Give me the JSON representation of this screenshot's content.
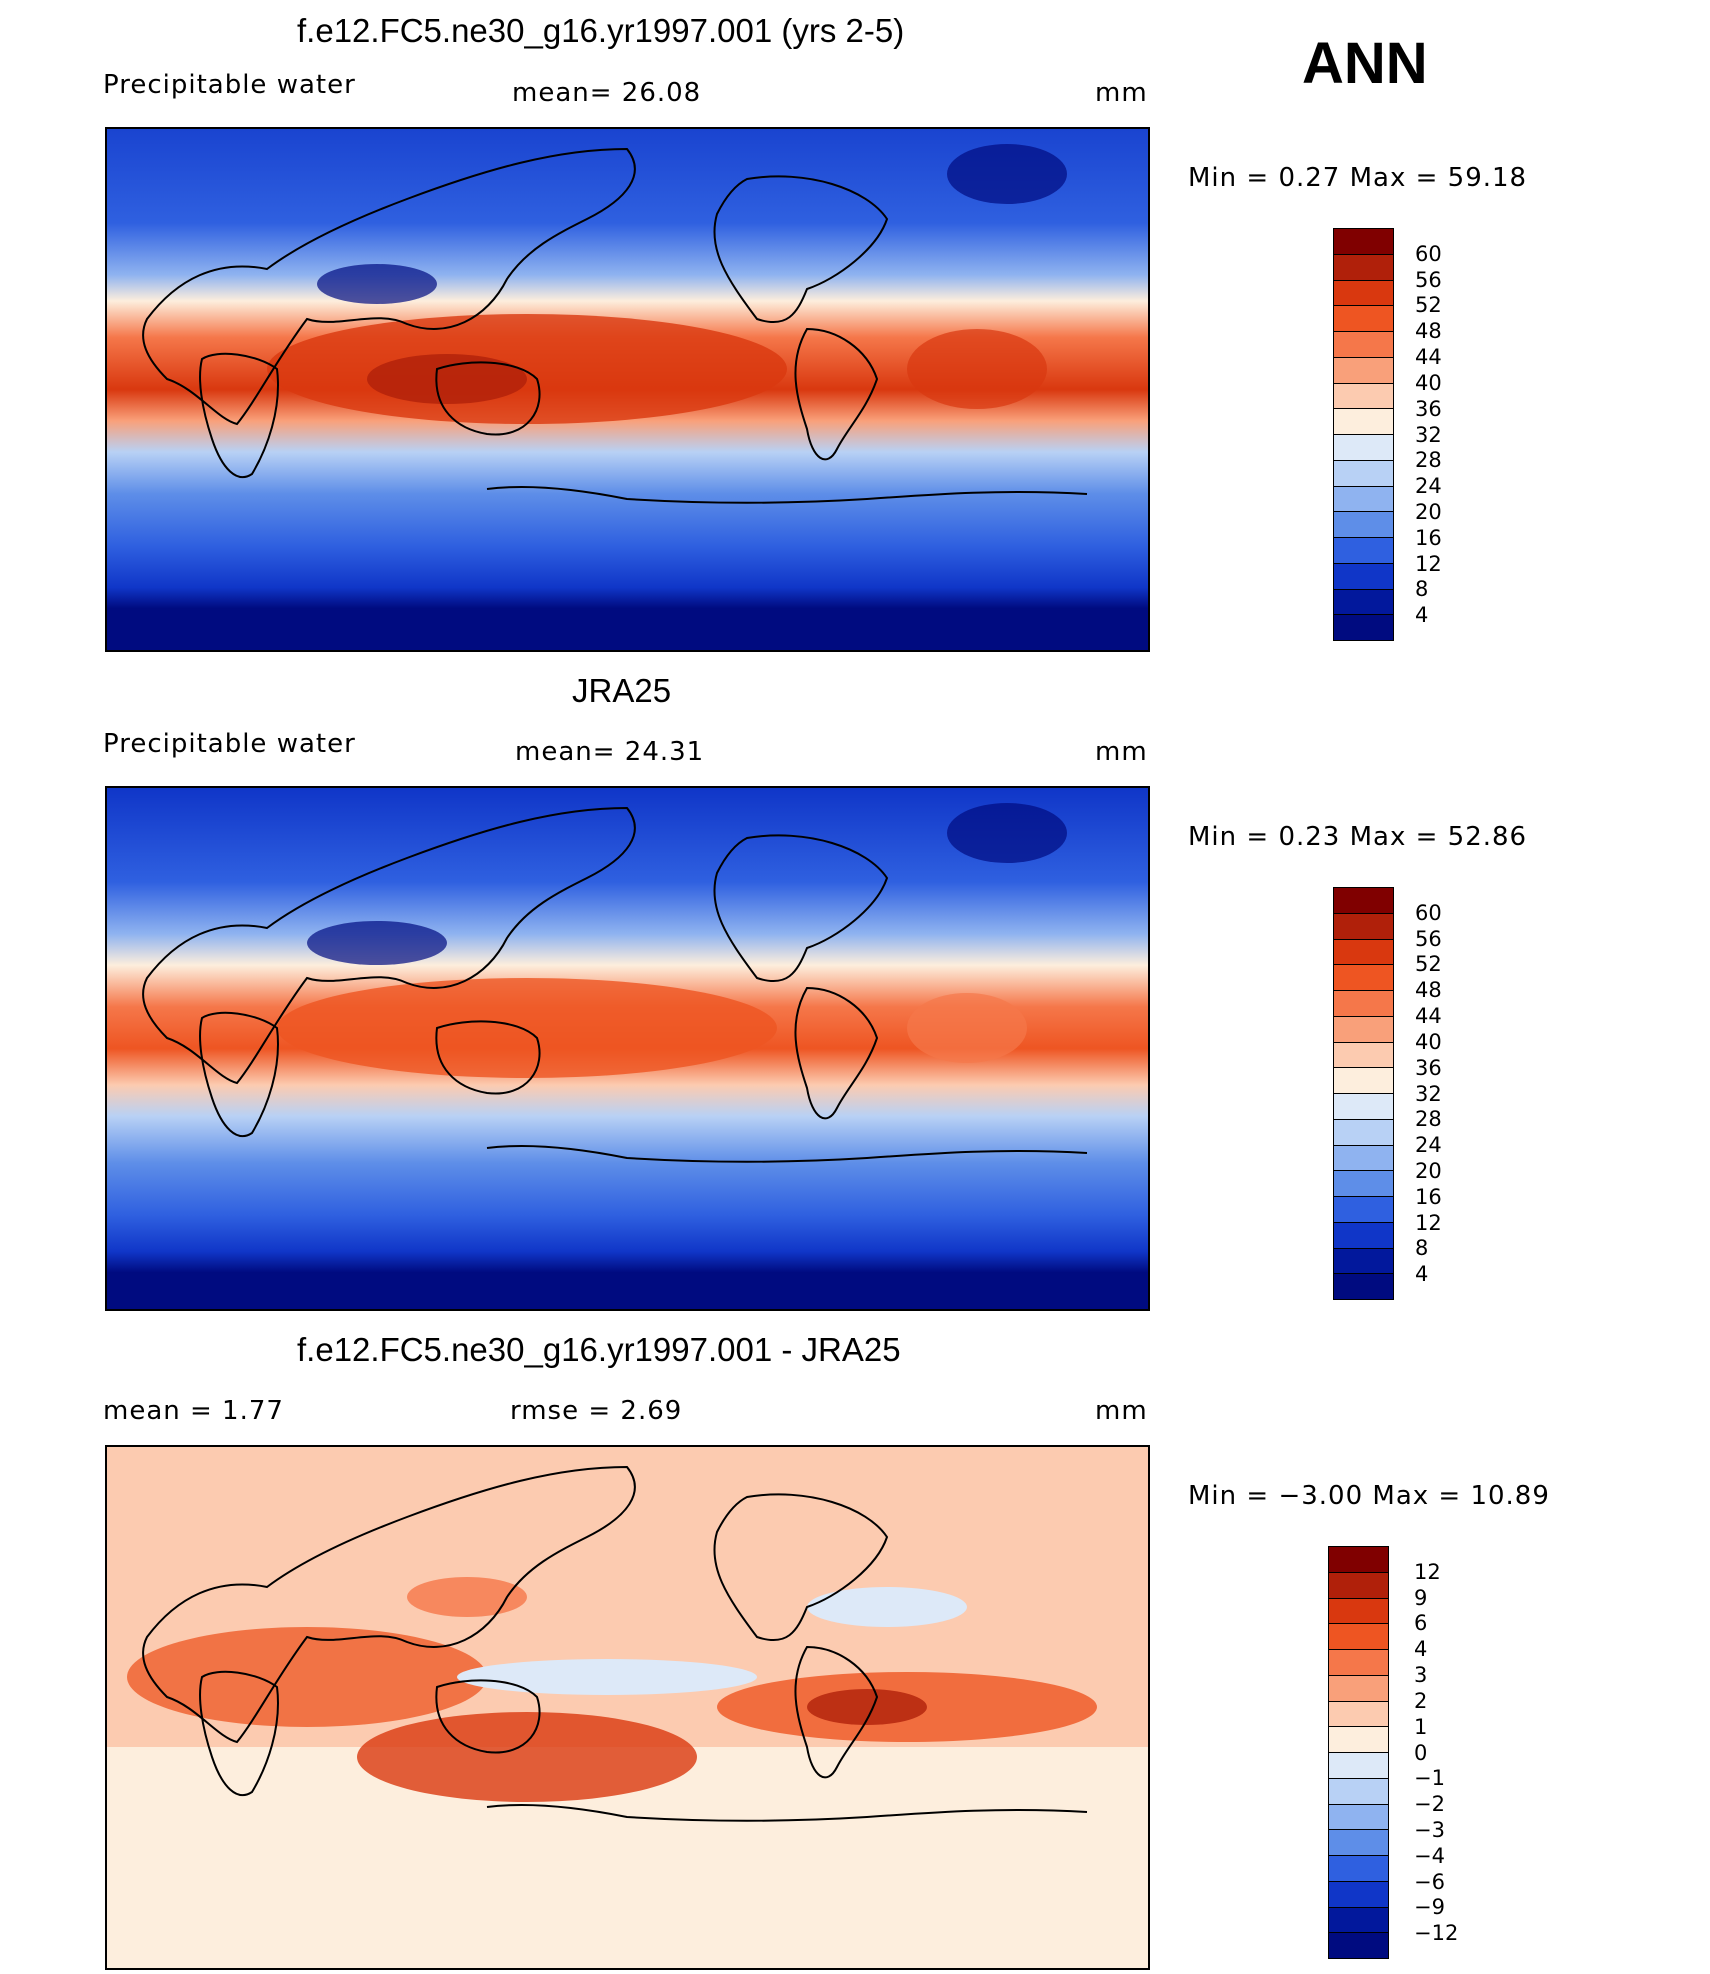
{
  "season": "ANN",
  "panels": [
    {
      "title": "f.e12.FC5.ne30_g16.yr1997.001 (yrs 2-5)",
      "left_label": "Precipitable  water",
      "mid_label": "mean=   26.08",
      "units": "mm",
      "minmax": "Min  =    0.27  Max  =    59.18",
      "type": "field"
    },
    {
      "title": "JRA25",
      "left_label": "Precipitable  water",
      "mid_label": "mean=   24.31",
      "units": "mm",
      "minmax": "Min  =    0.23  Max  =    52.86",
      "type": "field"
    },
    {
      "title": "f.e12.FC5.ne30_g16.yr1997.001 - JRA25",
      "left_label": "mean  =     1.77",
      "mid_label": "rmse  =     2.69",
      "units": "mm",
      "minmax": "Min  =  −3.00  Max  =    10.89",
      "type": "diff"
    }
  ],
  "colorbars": {
    "field": {
      "labels": [
        "60",
        "56",
        "52",
        "48",
        "44",
        "40",
        "36",
        "32",
        "28",
        "24",
        "20",
        "16",
        "12",
        "8",
        "4"
      ],
      "colors": [
        "#800000",
        "#b0200a",
        "#d9380f",
        "#ee5522",
        "#f5774a",
        "#f9a07a",
        "#fccbb0",
        "#fdeedd",
        "#dde9f8",
        "#b8d1f5",
        "#8fb3f0",
        "#5e8ee8",
        "#2f60e0",
        "#1036c8",
        "#02189c",
        "#000b80"
      ]
    },
    "diff": {
      "labels": [
        "12",
        "9",
        "6",
        "4",
        "3",
        "2",
        "1",
        "0",
        "−1",
        "−2",
        "−3",
        "−4",
        "−6",
        "−9",
        "−12"
      ],
      "colors": [
        "#800000",
        "#b0200a",
        "#d9380f",
        "#ee5522",
        "#f5774a",
        "#f9a07a",
        "#fccbb0",
        "#fdeedd",
        "#dde9f8",
        "#b8d1f5",
        "#8fb3f0",
        "#5e8ee8",
        "#2f60e0",
        "#1036c8",
        "#02189c",
        "#000b80"
      ]
    }
  }
}
